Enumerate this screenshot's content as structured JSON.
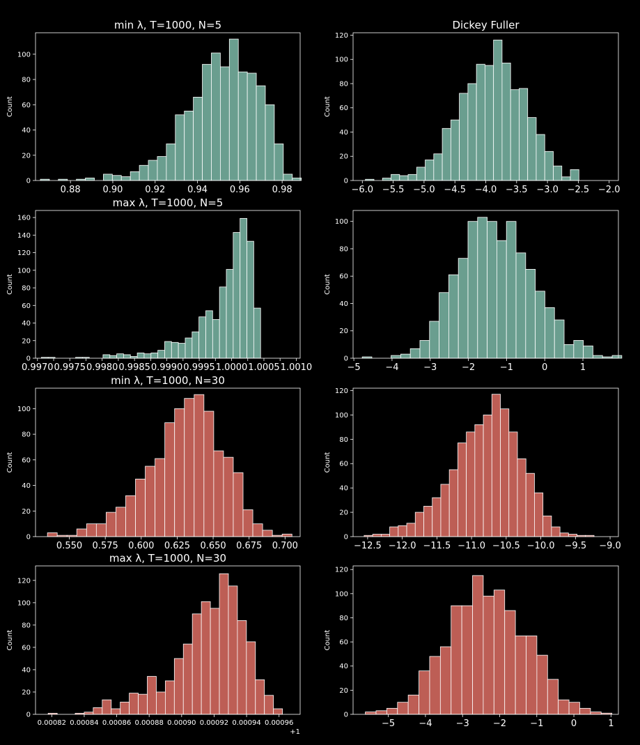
{
  "colors": {
    "teal": "#6a9e8f",
    "red": "#bd5e55",
    "edge": "#ffffff",
    "axis": "#ffffff",
    "background": "#000000"
  },
  "chart_data": [
    {
      "type": "bar",
      "title": "min λ, T=1000, N=5",
      "ylabel": "Count",
      "color": "teal",
      "xlim": [
        0.8635,
        0.9885
      ],
      "ylim": [
        0,
        117
      ],
      "xticks": [
        0.88,
        0.9,
        0.92,
        0.94,
        0.96,
        0.98
      ],
      "xtick_labels": [
        "0.88",
        "0.90",
        "0.92",
        "0.94",
        "0.96",
        "0.98"
      ],
      "yticks": [
        0,
        20,
        40,
        60,
        80,
        100
      ],
      "bin_start": 0.8658,
      "bin_width": 0.00425,
      "values": [
        1,
        0,
        1,
        0,
        1,
        2,
        0,
        5,
        4,
        3,
        7,
        12,
        16,
        19,
        29,
        52,
        55,
        66,
        92,
        101,
        90,
        112,
        86,
        85,
        75,
        60,
        29,
        5,
        2
      ]
    },
    {
      "type": "bar",
      "title": "Dickey Fuller",
      "ylabel": "Count",
      "color": "teal",
      "xlim": [
        -6.15,
        -1.85
      ],
      "ylim": [
        0,
        122
      ],
      "xticks": [
        -6.0,
        -5.5,
        -5.0,
        -4.5,
        -4.0,
        -3.5,
        -3.0,
        -2.5,
        -2.0
      ],
      "xtick_labels": [
        "−6.0",
        "−5.5",
        "−5.0",
        "−4.5",
        "−4.0",
        "−3.5",
        "−3.0",
        "−2.5",
        "−2.0"
      ],
      "yticks": [
        0,
        20,
        40,
        60,
        80,
        100,
        120
      ],
      "bin_start": -5.95,
      "bin_width": 0.1384,
      "values": [
        1,
        0,
        2,
        5,
        4,
        5,
        11,
        17,
        22,
        43,
        50,
        72,
        80,
        96,
        95,
        116,
        97,
        75,
        76,
        52,
        38,
        24,
        12,
        3,
        9
      ]
    },
    {
      "type": "bar",
      "title": "max λ, T=1000, N=5",
      "ylabel": "Count",
      "color": "teal",
      "xlim": [
        0.99697,
        1.00106
      ],
      "ylim": [
        0,
        168
      ],
      "xticks": [
        0.997,
        0.99725,
        0.9975,
        0.99775,
        0.998,
        0.99825,
        0.9985,
        0.99875,
        0.999,
        0.99925,
        0.9995,
        0.99975,
        1.0,
        1.00025,
        1.0005,
        1.00075,
        1.001
      ],
      "xtick_labels": [
        "0.9970",
        "",
        "0.9975",
        "",
        "0.9980",
        "",
        "0.9985",
        "",
        "0.9990",
        "",
        "0.9995",
        "",
        "1.0000",
        "",
        "1.0005",
        "",
        "1.0010"
      ],
      "yticks": [
        0,
        20,
        40,
        60,
        80,
        100,
        120,
        140,
        160
      ],
      "bin_start": 0.99706,
      "bin_width": 0.0001059,
      "values": [
        1,
        1,
        0,
        0,
        0,
        1,
        1,
        0,
        0,
        4,
        3,
        5,
        4,
        2,
        6,
        5,
        6,
        9,
        19,
        18,
        17,
        23,
        30,
        47,
        54,
        44,
        81,
        101,
        143,
        159,
        133,
        57
      ]
    },
    {
      "type": "bar",
      "title": "",
      "ylabel": "Count",
      "color": "teal",
      "xlim": [
        -5.02,
        1.93
      ],
      "ylim": [
        0,
        108
      ],
      "xticks": [
        -5,
        -4,
        -3,
        -2,
        -1,
        0,
        1
      ],
      "xtick_labels": [
        "−5",
        "−4",
        "−3",
        "−2",
        "−1",
        "0",
        "1"
      ],
      "yticks": [
        0,
        20,
        40,
        60,
        80,
        100
      ],
      "bin_start": -4.78,
      "bin_width": 0.2518,
      "values": [
        1,
        0,
        0,
        2,
        3,
        7,
        13,
        27,
        48,
        61,
        73,
        100,
        103,
        100,
        86,
        100,
        77,
        65,
        49,
        37,
        28,
        10,
        13,
        9,
        2,
        1,
        2
      ]
    },
    {
      "type": "bar",
      "title": "min λ, T=1000, N=30",
      "ylabel": "Count",
      "color": "red",
      "xlim": [
        0.5265,
        0.7105
      ],
      "ylim": [
        0,
        116
      ],
      "xticks": [
        0.55,
        0.575,
        0.6,
        0.625,
        0.65,
        0.675,
        0.7
      ],
      "xtick_labels": [
        "0.550",
        "0.575",
        "0.600",
        "0.625",
        "0.650",
        "0.675",
        "0.700"
      ],
      "yticks": [
        0,
        20,
        40,
        60,
        80,
        100
      ],
      "bin_start": 0.5348,
      "bin_width": 0.0068,
      "values": [
        3,
        1,
        1,
        6,
        10,
        10,
        19,
        23,
        32,
        45,
        55,
        61,
        89,
        100,
        108,
        111,
        98,
        67,
        62,
        50,
        21,
        10,
        5,
        1,
        2
      ]
    },
    {
      "type": "bar",
      "title": "",
      "ylabel": "Count",
      "color": "red",
      "xlim": [
        -12.71,
        -8.88
      ],
      "ylim": [
        0,
        122
      ],
      "xticks": [
        -12.5,
        -12.0,
        -11.5,
        -11.0,
        -10.5,
        -10.0,
        -9.5,
        -9.0
      ],
      "xtick_labels": [
        "−12.5",
        "−12.0",
        "−11.5",
        "−11.0",
        "−10.5",
        "−10.0",
        "−9.5",
        "−9.0"
      ],
      "yticks": [
        0,
        20,
        40,
        60,
        80,
        100,
        120
      ],
      "bin_start": -12.55,
      "bin_width": 0.1229,
      "values": [
        1,
        2,
        2,
        8,
        9,
        11,
        20,
        25,
        32,
        43,
        55,
        77,
        86,
        92,
        100,
        117,
        105,
        86,
        64,
        52,
        36,
        17,
        8,
        3,
        2,
        1,
        1
      ]
    },
    {
      "type": "bar",
      "title": "max λ, T=1000, N=30",
      "ylabel": "Count",
      "color": "red",
      "xlim": [
        0.00081,
        0.000973
      ],
      "ylim": [
        0,
        133
      ],
      "xticks": [
        0.00082,
        0.00084,
        0.00086,
        0.00088,
        0.0009,
        0.00092,
        0.00094,
        0.00096
      ],
      "xtick_labels": [
        "0.00082",
        "0.00084",
        "0.00086",
        "0.00088",
        "0.00090",
        "0.00092",
        "0.00094",
        "0.00096"
      ],
      "x_offset_label": "+1",
      "yticks": [
        0,
        20,
        40,
        60,
        80,
        100,
        120
      ],
      "bin_start": 0.0008178,
      "bin_width": 5.55e-06,
      "values": [
        1,
        0,
        0,
        1,
        2,
        6,
        13,
        5,
        11,
        19,
        18,
        34,
        20,
        30,
        50,
        63,
        90,
        101,
        95,
        126,
        115,
        84,
        65,
        31,
        17,
        5
      ]
    },
    {
      "type": "bar",
      "title": "",
      "ylabel": "Count",
      "color": "red",
      "xlim": [
        -5.95,
        1.2
      ],
      "ylim": [
        0,
        123
      ],
      "xticks": [
        -5,
        -4,
        -3,
        -2,
        -1,
        0,
        1
      ],
      "xtick_labels": [
        "−5",
        "−4",
        "−3",
        "−2",
        "−1",
        "0",
        "1"
      ],
      "yticks": [
        0,
        20,
        40,
        60,
        80,
        100,
        120
      ],
      "bin_start": -5.62,
      "bin_width": 0.2889,
      "values": [
        2,
        3,
        5,
        10,
        16,
        36,
        48,
        56,
        90,
        90,
        115,
        98,
        103,
        86,
        65,
        65,
        49,
        29,
        12,
        10,
        5,
        2,
        1
      ]
    }
  ]
}
